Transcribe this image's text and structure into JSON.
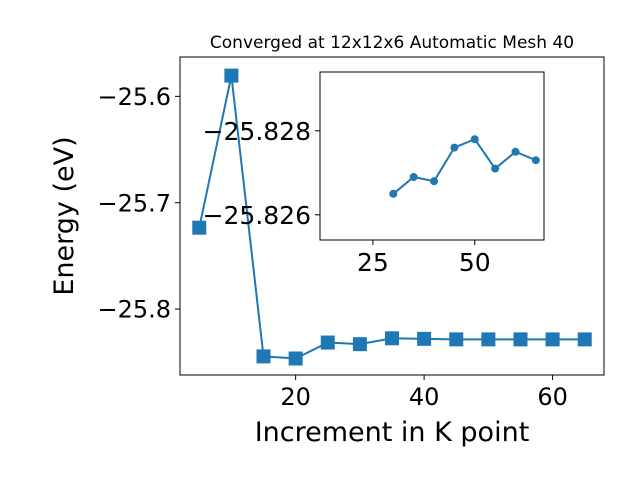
{
  "chart_data": [
    {
      "type": "line",
      "title": "Converged at 12x12x6 Automatic Mesh 40",
      "xlabel": "Increment in K point",
      "ylabel": "Energy (eV)",
      "xlim": [
        2,
        68
      ],
      "ylim": [
        -25.862,
        -25.563
      ],
      "xticks": [
        20,
        40,
        60
      ],
      "yticks": [
        -25.6,
        -25.7,
        -25.8
      ],
      "ytick_labels": [
        "−25.6",
        "−25.7",
        "−25.8"
      ],
      "grid": false,
      "marker": "square",
      "color": "#1f77b4",
      "x": [
        5,
        10,
        15,
        20,
        25,
        30,
        35,
        40,
        45,
        50,
        55,
        60,
        65
      ],
      "y": [
        -25.7235,
        -25.5805,
        -25.8445,
        -25.8465,
        -25.8315,
        -25.833,
        -25.8275,
        -25.828,
        -25.8285,
        -25.8285,
        -25.8285,
        -25.8285,
        -25.8285
      ]
    },
    {
      "type": "line",
      "title": "",
      "xlabel": "",
      "ylabel": "",
      "xlim": [
        12,
        67
      ],
      "ylim": [
        -25.8254,
        -25.8294
      ],
      "xticks": [
        25,
        50
      ],
      "yticks": [
        -25.828,
        -25.826
      ],
      "ytick_labels": [
        "−25.828",
        "−25.826"
      ],
      "grid": false,
      "marker": "circle",
      "color": "#1f77b4",
      "x": [
        30,
        35,
        40,
        45,
        50,
        55,
        60,
        65
      ],
      "y": [
        -25.8265,
        -25.8269,
        -25.8268,
        -25.8276,
        -25.8278,
        -25.8271,
        -25.8275,
        -25.8273
      ]
    }
  ]
}
